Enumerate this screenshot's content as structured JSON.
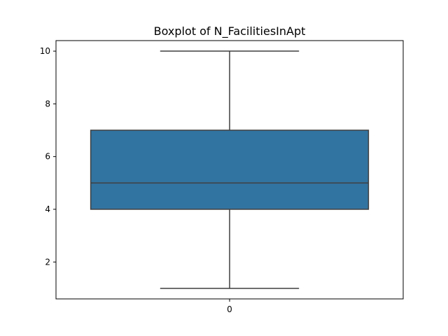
{
  "chart_data": {
    "type": "boxplot",
    "title": "Boxplot of N_FacilitiesInApt",
    "xlabel": "",
    "ylabel": "",
    "categories": [
      "0"
    ],
    "boxes": [
      {
        "category": "0",
        "whisker_low": 1,
        "q1": 4,
        "median": 5,
        "q3": 7,
        "whisker_high": 10
      }
    ],
    "ylim": [
      0.6,
      10.4
    ],
    "yticks": [
      2,
      4,
      6,
      8,
      10
    ],
    "grid": false,
    "colors": {
      "box_fill": "#3274a1",
      "lines": "#3f3f3f",
      "axes": "#000000"
    }
  }
}
